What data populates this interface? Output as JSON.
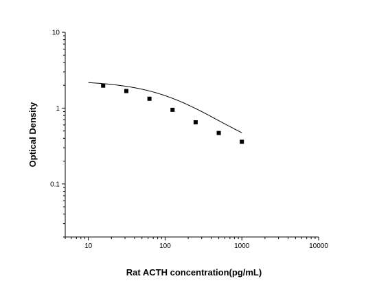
{
  "chart_data": {
    "type": "scatter",
    "title": "",
    "xlabel": "Rat ACTH concentration(pg/mL)",
    "ylabel": "Optical Density",
    "x_scale": "log",
    "y_scale": "log",
    "xlim": [
      5,
      10000
    ],
    "ylim": [
      0.02,
      10
    ],
    "x_ticks": [
      {
        "value": 10,
        "label": "10"
      },
      {
        "value": 100,
        "label": "100"
      },
      {
        "value": 1000,
        "label": "1000"
      },
      {
        "value": 10000,
        "label": "10000"
      }
    ],
    "y_ticks": [
      {
        "value": 0.1,
        "label": "0.1"
      },
      {
        "value": 1,
        "label": "1"
      },
      {
        "value": 10,
        "label": "10"
      }
    ],
    "grid": false,
    "legend": false,
    "series": [
      {
        "x": [
          15.6,
          31.25,
          62.5,
          125,
          250,
          500,
          1000
        ],
        "y": [
          1.98,
          1.68,
          1.33,
          0.95,
          0.65,
          0.47,
          0.36
        ],
        "marker": "square",
        "line": "fitted-curve",
        "color": "#000000"
      }
    ],
    "fit_curve": {
      "x_start": 10,
      "x_end": 1000,
      "model": "4PL",
      "A": 2.3,
      "D": 0.2,
      "C": 150,
      "B": 1
    }
  }
}
